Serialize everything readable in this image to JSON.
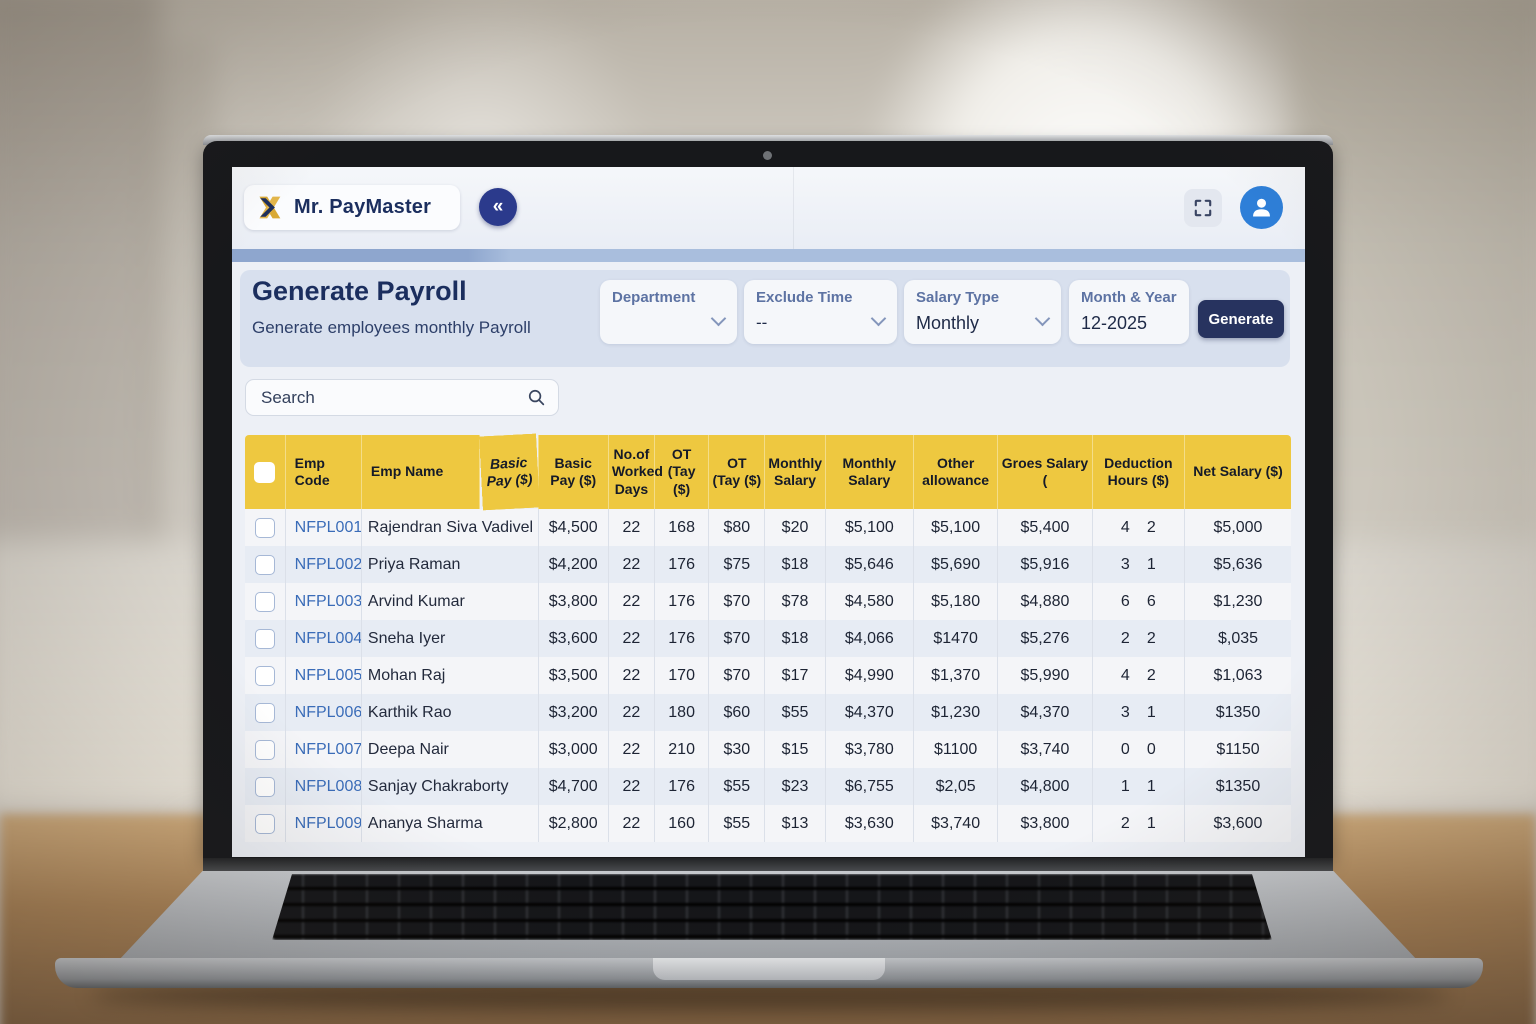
{
  "app": {
    "logo_text": "Mr. PayMaster",
    "collapse_icon": "«"
  },
  "page": {
    "title": "Generate Payroll",
    "subtitle": "Generate employees monthly Payroll"
  },
  "filters": {
    "department": {
      "label": "Department",
      "value": ""
    },
    "exclude_time": {
      "label": "Exclude Time",
      "value": "--"
    },
    "salary_type": {
      "label": "Salary Type",
      "value": "Monthly"
    },
    "month_year": {
      "label": "Month & Year",
      "value": "12-2025"
    },
    "generate_label": "Generate"
  },
  "search": {
    "placeholder": "Search"
  },
  "colors": {
    "header_yellow": "#eec840",
    "navy": "#1b2e5e",
    "code_blue": "#3a6cb8",
    "avatar_blue": "#2e7fd8",
    "collapse_blue": "#2b3a8c"
  },
  "table": {
    "headers": [
      "Emp Code",
      "Emp Name",
      "Basic Pay ($)",
      "Basic Pay ($)",
      "No.of Worked Days",
      "OT (Tay ($)",
      "OT (Tay ($)",
      "Monthly Salary",
      "Monthly Salary",
      "Other allowance",
      "Groes Salary (",
      "Deduction Hours ($)",
      "Net Salary ($)"
    ],
    "rows": [
      {
        "code": "NFPL001",
        "name": "Rajendran Siva Vadivel",
        "values": [
          "$4,500",
          "22",
          "168",
          "$80",
          "$20",
          "$5,100",
          "$5,100",
          "$5,400"
        ],
        "deduction": [
          "4",
          "2"
        ],
        "net": "$5,000"
      },
      {
        "code": "NFPL002",
        "name": "Priya Raman",
        "values": [
          "$4,200",
          "22",
          "176",
          "$75",
          "$18",
          "$5,646",
          "$5,690",
          "$5,916"
        ],
        "deduction": [
          "3",
          "1"
        ],
        "net": "$5,636"
      },
      {
        "code": "NFPL003",
        "name": "Arvind Kumar",
        "values": [
          "$3,800",
          "22",
          "176",
          "$70",
          "$78",
          "$4,580",
          "$5,180",
          "$4,880"
        ],
        "deduction": [
          "6",
          "6"
        ],
        "net": "$1,230"
      },
      {
        "code": "NFPL004",
        "name": "Sneha Iyer",
        "values": [
          "$3,600",
          "22",
          "176",
          "$70",
          "$18",
          "$4,066",
          "$1470",
          "$5,276"
        ],
        "deduction": [
          "2",
          "2"
        ],
        "net": "$,035"
      },
      {
        "code": "NFPL005",
        "name": "Mohan Raj",
        "values": [
          "$3,500",
          "22",
          "170",
          "$70",
          "$17",
          "$4,990",
          "$1,370",
          "$5,990"
        ],
        "deduction": [
          "4",
          "2"
        ],
        "net": "$1,063"
      },
      {
        "code": "NFPL006",
        "name": "Karthik Rao",
        "values": [
          "$3,200",
          "22",
          "180",
          "$60",
          "$55",
          "$4,370",
          "$1,230",
          "$4,370"
        ],
        "deduction": [
          "3",
          "1"
        ],
        "net": "$1350"
      },
      {
        "code": "NFPL007",
        "name": "Deepa Nair",
        "values": [
          "$3,000",
          "22",
          "210",
          "$30",
          "$15",
          "$3,780",
          "$1100",
          "$3,740"
        ],
        "deduction": [
          "0",
          "0"
        ],
        "net": "$1150"
      },
      {
        "code": "NFPL008",
        "name": "Sanjay Chakraborty",
        "values": [
          "$4,700",
          "22",
          "176",
          "$55",
          "$23",
          "$6,755",
          "$2,05",
          "$4,800"
        ],
        "deduction": [
          "1",
          "1"
        ],
        "net": "$1350"
      },
      {
        "code": "NFPL009",
        "name": "Ananya Sharma",
        "values": [
          "$2,800",
          "22",
          "160",
          "$55",
          "$13",
          "$3,630",
          "$3,740",
          "$3,800"
        ],
        "deduction": [
          "2",
          "1"
        ],
        "net": "$3,600"
      }
    ]
  }
}
